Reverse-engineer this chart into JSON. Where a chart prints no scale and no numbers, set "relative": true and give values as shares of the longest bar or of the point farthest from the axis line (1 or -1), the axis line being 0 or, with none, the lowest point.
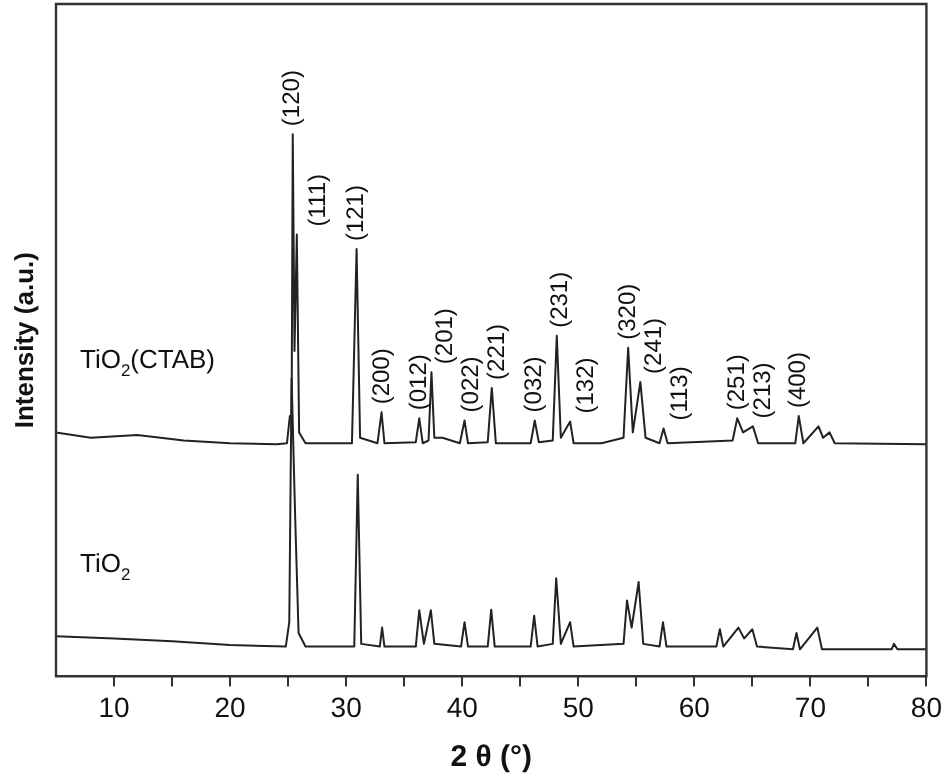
{
  "chart_data": {
    "type": "line",
    "relative": true,
    "xlabel": "2 θ (°)",
    "ylabel": "Intensity (a.u.)",
    "xlim": [
      5,
      80
    ],
    "xticks": [
      10,
      {
        "value": 15,
        "label": null
      },
      20,
      {
        "value": 25,
        "label": null
      },
      30,
      {
        "value": 35,
        "label": null
      },
      40,
      {
        "value": 45,
        "label": null
      },
      50,
      {
        "value": 55,
        "label": null
      },
      60,
      {
        "value": 65,
        "label": null
      },
      70,
      {
        "value": 75,
        "label": null
      },
      80
    ],
    "grid": false,
    "legend": false,
    "marker": "none",
    "line_style": "solid",
    "series": [
      {
        "name": "TiO$_{2}$(CTAB)",
        "color": "#222222",
        "x": [
          5,
          8,
          12,
          16,
          20,
          24,
          24.9,
          25.15,
          25.3,
          25.4,
          25.55,
          25.75,
          25.95,
          26.5,
          30.5,
          30.9,
          31.2,
          32.7,
          33.05,
          33.3,
          36.0,
          36.3,
          36.6,
          37.1,
          37.35,
          37.6,
          38.3,
          39.8,
          40.2,
          40.5,
          42.2,
          42.55,
          42.9,
          45.9,
          46.25,
          46.6,
          47.8,
          48.15,
          48.5,
          49.3,
          49.6,
          52.0,
          53.9,
          54.3,
          54.7,
          55.35,
          55.8,
          57.0,
          57.35,
          57.7,
          63.3,
          63.7,
          64.2,
          65.05,
          65.5,
          68.7,
          69.0,
          69.4,
          70.7,
          71.1,
          71.65,
          72.1,
          80
        ],
        "values": [
          0.45,
          0.44,
          0.445,
          0.435,
          0.43,
          0.428,
          0.43,
          0.48,
          0.47,
          1.0,
          0.6,
          0.815,
          0.45,
          0.43,
          0.43,
          0.788,
          0.44,
          0.43,
          0.487,
          0.43,
          0.432,
          0.476,
          0.43,
          0.435,
          0.561,
          0.44,
          0.44,
          0.43,
          0.472,
          0.43,
          0.432,
          0.532,
          0.43,
          0.43,
          0.472,
          0.432,
          0.435,
          0.628,
          0.44,
          0.47,
          0.43,
          0.43,
          0.44,
          0.606,
          0.45,
          0.543,
          0.44,
          0.43,
          0.457,
          0.43,
          0.435,
          0.476,
          0.45,
          0.461,
          0.43,
          0.43,
          0.48,
          0.43,
          0.461,
          0.44,
          0.45,
          0.43,
          0.428
        ]
      },
      {
        "name": "TiO$_{2}$",
        "color": "#222222",
        "x": [
          5,
          10,
          15,
          20,
          24.8,
          25.1,
          25.3,
          25.6,
          25.9,
          26.5,
          30.7,
          31.0,
          31.3,
          32.9,
          33.1,
          33.3,
          36.0,
          36.3,
          36.7,
          37.3,
          37.6,
          39.9,
          40.2,
          40.5,
          42.2,
          42.5,
          42.8,
          45.9,
          46.2,
          46.5,
          47.8,
          48.1,
          48.5,
          49.3,
          49.6,
          53.9,
          54.2,
          54.6,
          55.2,
          55.6,
          57.0,
          57.3,
          57.6,
          61.9,
          62.2,
          62.5,
          63.8,
          64.3,
          65.0,
          65.4,
          68.5,
          68.8,
          69.1,
          70.6,
          71.0,
          77.0,
          77.2,
          77.5,
          80
        ],
        "values": [
          0.074,
          0.07,
          0.065,
          0.058,
          0.055,
          0.1,
          0.55,
          0.3,
          0.08,
          0.055,
          0.055,
          0.372,
          0.06,
          0.055,
          0.09,
          0.055,
          0.055,
          0.122,
          0.06,
          0.122,
          0.06,
          0.055,
          0.1,
          0.055,
          0.055,
          0.123,
          0.055,
          0.055,
          0.112,
          0.055,
          0.06,
          0.181,
          0.06,
          0.1,
          0.055,
          0.06,
          0.14,
          0.09,
          0.174,
          0.06,
          0.055,
          0.1,
          0.055,
          0.055,
          0.087,
          0.055,
          0.09,
          0.07,
          0.087,
          0.055,
          0.05,
          0.08,
          0.05,
          0.09,
          0.05,
          0.05,
          0.06,
          0.05,
          0.05
        ]
      }
    ],
    "annotations": [
      {
        "text": "(120)",
        "x": 25.4,
        "y": 1.0
      },
      {
        "text": "(111)",
        "x": 25.75,
        "y": 0.815
      },
      {
        "text": "(121)",
        "x": 30.9,
        "y": 0.788
      },
      {
        "text": "(200)",
        "x": 33.05,
        "y": 0.487
      },
      {
        "text": "(012)",
        "x": 36.3,
        "y": 0.476
      },
      {
        "text": "(201)",
        "x": 37.35,
        "y": 0.561
      },
      {
        "text": "(022)",
        "x": 40.2,
        "y": 0.472
      },
      {
        "text": "(221)",
        "x": 42.55,
        "y": 0.532
      },
      {
        "text": "(032)",
        "x": 46.25,
        "y": 0.472
      },
      {
        "text": "(231)",
        "x": 48.15,
        "y": 0.628
      },
      {
        "text": "(132)",
        "x": 49.3,
        "y": 0.47
      },
      {
        "text": "(320)",
        "x": 54.3,
        "y": 0.606
      },
      {
        "text": "(241)",
        "x": 55.35,
        "y": 0.543
      },
      {
        "text": "(113)",
        "x": 57.35,
        "y": 0.457
      },
      {
        "text": "(251)",
        "x": 63.7,
        "y": 0.476
      },
      {
        "text": "(213)",
        "x": 65.05,
        "y": 0.461
      },
      {
        "text": "(400)",
        "x": 69.0,
        "y": 0.48
      }
    ]
  }
}
